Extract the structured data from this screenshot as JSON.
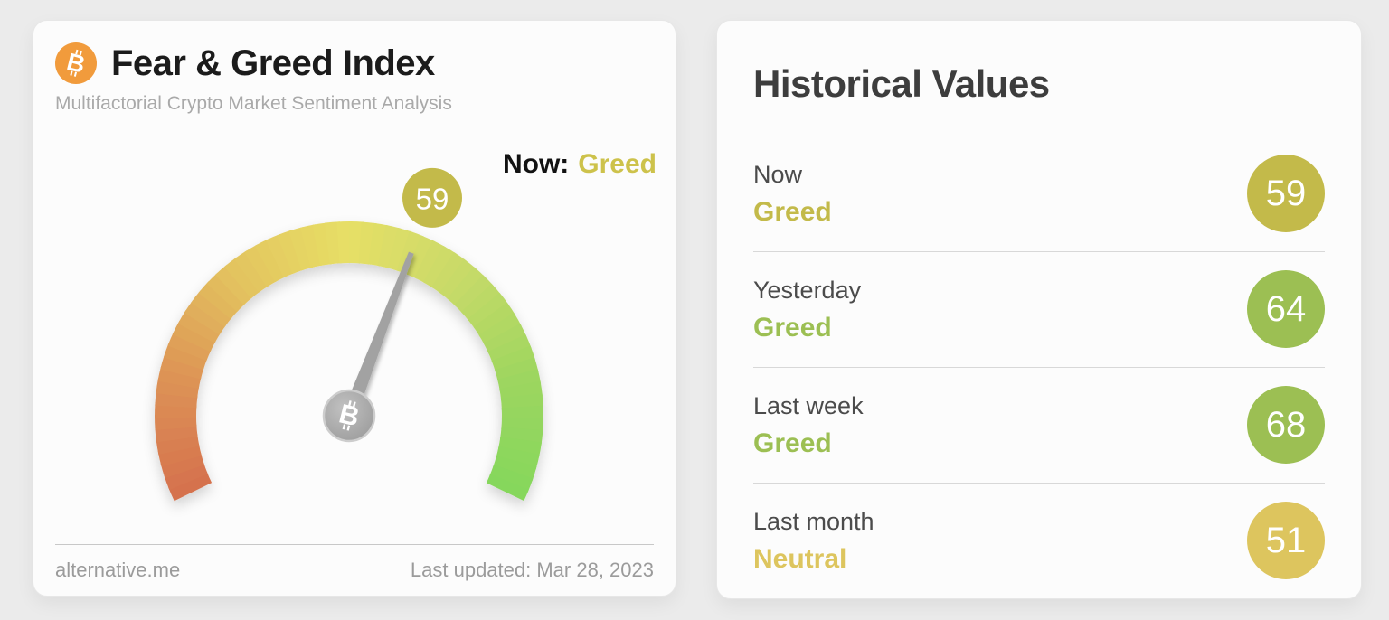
{
  "fng_card": {
    "title": "Fear & Greed Index",
    "subtitle": "Multifactorial Crypto Market Sentiment Analysis",
    "now_label": "Now:",
    "now_sentiment": "Greed",
    "now_sentiment_color": "#cdc24b",
    "footer_brand": "alternative.me",
    "footer_updated": "Last updated: Mar 28, 2023",
    "btc_icon_color": "#f19b3c",
    "bitcoin_glyph": "B"
  },
  "chart_data": {
    "type": "gauge",
    "title": "Fear & Greed Index",
    "value": 59,
    "min": 0,
    "max": 100,
    "classification": "Greed",
    "sweep_deg": 232,
    "scale_colors": [
      "#d5704e",
      "#dd9355",
      "#e3c35f",
      "#e7df66",
      "#c8da68",
      "#9ed660",
      "#85d75b"
    ],
    "needle_color": "#a2a2a2",
    "hub_border_color": "#cdcdcd",
    "value_badge_color": "#c3ba4a"
  },
  "historical": {
    "title": "Historical Values",
    "rows": [
      {
        "label": "Now",
        "classification": "Greed",
        "value": 59,
        "color": "#c3ba4a"
      },
      {
        "label": "Yesterday",
        "classification": "Greed",
        "value": 64,
        "color": "#9cbf53"
      },
      {
        "label": "Last week",
        "classification": "Greed",
        "value": 68,
        "color": "#9cbf53"
      },
      {
        "label": "Last month",
        "classification": "Neutral",
        "value": 51,
        "color": "#ddc55e"
      }
    ]
  }
}
